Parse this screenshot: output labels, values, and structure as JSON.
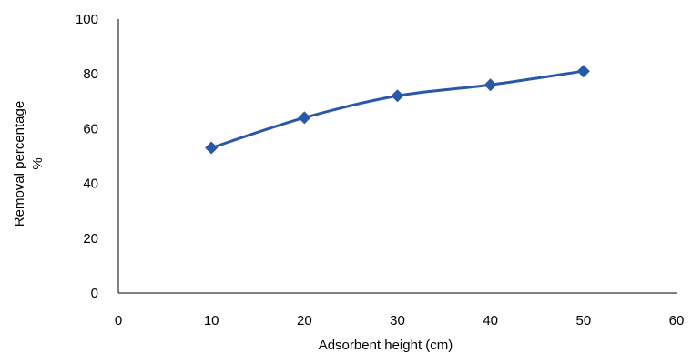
{
  "chart_data": {
    "type": "line",
    "title": "",
    "xlabel": "Adsorbent height (cm)",
    "ylabel_lines": [
      "Removal percentage",
      "%"
    ],
    "xlim": [
      0,
      60
    ],
    "ylim": [
      0,
      100
    ],
    "x_ticks": [
      0,
      10,
      20,
      30,
      40,
      50,
      60
    ],
    "y_ticks": [
      0,
      20,
      40,
      60,
      80,
      100
    ],
    "grid": false,
    "legend": "none",
    "series": [
      {
        "color": "#2a58a8",
        "marker": "diamond",
        "x": [
          10,
          20,
          30,
          40,
          50
        ],
        "y": [
          53,
          64,
          72,
          76,
          81
        ]
      }
    ]
  }
}
